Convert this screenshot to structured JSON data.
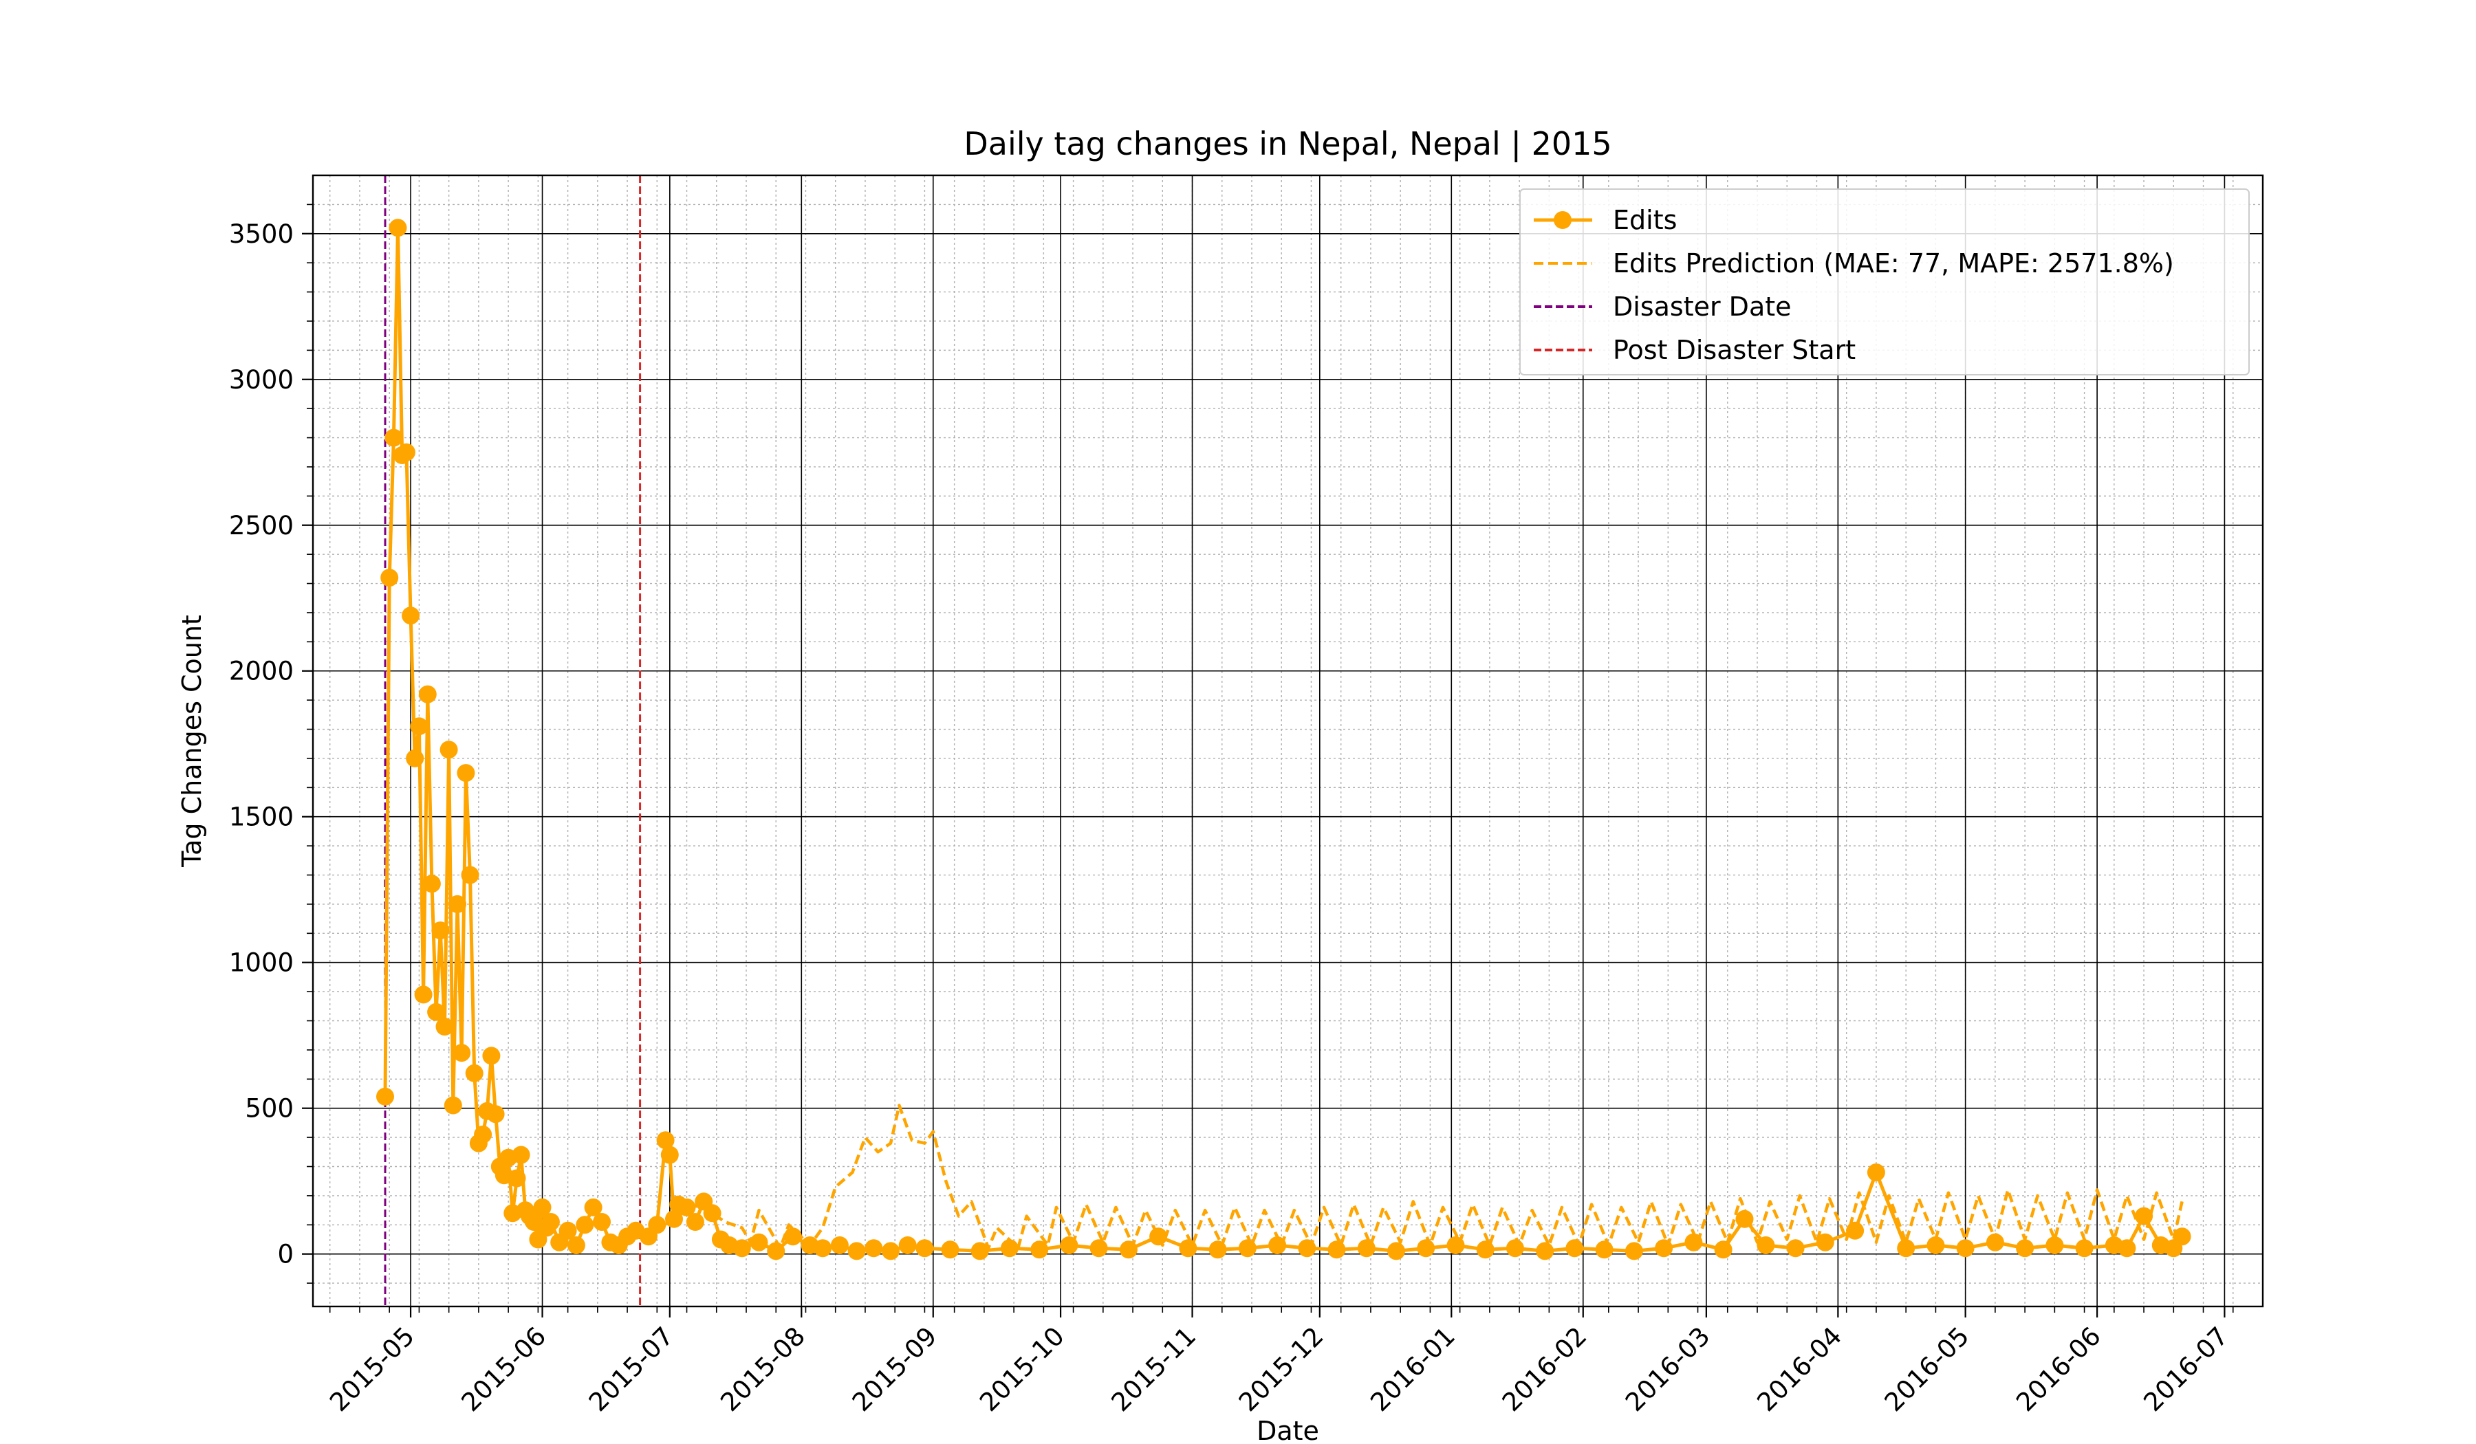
{
  "chart_data": {
    "type": "line",
    "title": "Daily tag changes in Nepal, Nepal | 2015",
    "xlabel": "Date",
    "ylabel": "Tag Changes Count",
    "x_scale": "date",
    "xlim": [
      "2015-04-08",
      "2016-07-10"
    ],
    "ylim": [
      -180,
      3700
    ],
    "x_ticks": [
      "2015-05",
      "2015-06",
      "2015-07",
      "2015-08",
      "2015-09",
      "2015-10",
      "2015-11",
      "2015-12",
      "2016-01",
      "2016-02",
      "2016-03",
      "2016-04",
      "2016-05",
      "2016-06",
      "2016-07"
    ],
    "y_ticks": [
      "0",
      "500",
      "1000",
      "1500",
      "2000",
      "2500",
      "3000",
      "3500"
    ],
    "grid": true,
    "legend_position": "upper right",
    "colors": {
      "edits": "#FFA500",
      "prediction": "#FFA500",
      "disaster": "#800080",
      "post": "#D62728",
      "grid": "#000000"
    },
    "vlines": [
      {
        "name": "Disaster Date",
        "date": "2015-04-25"
      },
      {
        "name": "Post Disaster Start",
        "date": "2015-06-24"
      }
    ],
    "series": [
      {
        "name": "Edits",
        "style": "solid-markers",
        "x": [
          "2015-04-25",
          "2015-04-26",
          "2015-04-27",
          "2015-04-28",
          "2015-04-29",
          "2015-04-30",
          "2015-05-01",
          "2015-05-02",
          "2015-05-03",
          "2015-05-04",
          "2015-05-05",
          "2015-05-06",
          "2015-05-07",
          "2015-05-08",
          "2015-05-09",
          "2015-05-10",
          "2015-05-11",
          "2015-05-12",
          "2015-05-13",
          "2015-05-14",
          "2015-05-15",
          "2015-05-16",
          "2015-05-17",
          "2015-05-18",
          "2015-05-19",
          "2015-05-20",
          "2015-05-21",
          "2015-05-22",
          "2015-05-23",
          "2015-05-24",
          "2015-05-25",
          "2015-05-26",
          "2015-05-27",
          "2015-05-28",
          "2015-05-29",
          "2015-05-30",
          "2015-05-31",
          "2015-06-01",
          "2015-06-02",
          "2015-06-03",
          "2015-06-05",
          "2015-06-07",
          "2015-06-09",
          "2015-06-11",
          "2015-06-13",
          "2015-06-15",
          "2015-06-17",
          "2015-06-19",
          "2015-06-21",
          "2015-06-23",
          "2015-06-26",
          "2015-06-28",
          "2015-06-30",
          "2015-07-01",
          "2015-07-02",
          "2015-07-03",
          "2015-07-05",
          "2015-07-07",
          "2015-07-09",
          "2015-07-11",
          "2015-07-13",
          "2015-07-15",
          "2015-07-18",
          "2015-07-22",
          "2015-07-26",
          "2015-07-30",
          "2015-08-03",
          "2015-08-06",
          "2015-08-10",
          "2015-08-14",
          "2015-08-18",
          "2015-08-22",
          "2015-08-26",
          "2015-08-30",
          "2015-09-05",
          "2015-09-12",
          "2015-09-19",
          "2015-09-26",
          "2015-10-03",
          "2015-10-10",
          "2015-10-17",
          "2015-10-24",
          "2015-10-31",
          "2015-11-07",
          "2015-11-14",
          "2015-11-21",
          "2015-11-28",
          "2015-12-05",
          "2015-12-12",
          "2015-12-19",
          "2015-12-26",
          "2016-01-02",
          "2016-01-09",
          "2016-01-16",
          "2016-01-23",
          "2016-01-30",
          "2016-02-06",
          "2016-02-13",
          "2016-02-20",
          "2016-02-27",
          "2016-03-05",
          "2016-03-10",
          "2016-03-15",
          "2016-03-22",
          "2016-03-29",
          "2016-04-05",
          "2016-04-10",
          "2016-04-17",
          "2016-04-24",
          "2016-05-01",
          "2016-05-08",
          "2016-05-15",
          "2016-05-22",
          "2016-05-29",
          "2016-06-05",
          "2016-06-08",
          "2016-06-12",
          "2016-06-16",
          "2016-06-19",
          "2016-06-21"
        ],
        "values": [
          540,
          2320,
          2800,
          3520,
          2740,
          2750,
          2190,
          1700,
          1810,
          890,
          1920,
          1270,
          830,
          1110,
          780,
          1730,
          510,
          1200,
          690,
          1650,
          1300,
          620,
          380,
          410,
          490,
          680,
          480,
          300,
          270,
          330,
          140,
          260,
          340,
          150,
          130,
          110,
          50,
          160,
          90,
          110,
          40,
          80,
          30,
          100,
          160,
          110,
          40,
          30,
          60,
          80,
          60,
          100,
          390,
          340,
          120,
          170,
          160,
          110,
          180,
          140,
          50,
          30,
          20,
          40,
          10,
          60,
          30,
          20,
          30,
          10,
          20,
          10,
          30,
          20,
          15,
          10,
          20,
          15,
          30,
          20,
          15,
          60,
          20,
          15,
          20,
          30,
          20,
          15,
          20,
          10,
          20,
          30,
          15,
          20,
          10,
          20,
          15,
          10,
          20,
          40,
          15,
          120,
          30,
          20,
          40,
          80,
          280,
          20,
          30,
          20,
          40,
          20,
          30,
          20,
          30,
          20,
          130,
          30,
          20,
          60
        ]
      },
      {
        "name": "Edits Prediction (MAE: 77, MAPE: 2571.8%)",
        "style": "dashed",
        "x": [
          "2015-06-24",
          "2015-06-28",
          "2015-07-02",
          "2015-07-06",
          "2015-07-10",
          "2015-07-14",
          "2015-07-18",
          "2015-07-20",
          "2015-07-22",
          "2015-07-27",
          "2015-07-29",
          "2015-08-03",
          "2015-08-06",
          "2015-08-09",
          "2015-08-13",
          "2015-08-16",
          "2015-08-19",
          "2015-08-22",
          "2015-08-24",
          "2015-08-27",
          "2015-08-30",
          "2015-09-01",
          "2015-09-04",
          "2015-09-07",
          "2015-09-10",
          "2015-09-14",
          "2015-09-16",
          "2015-09-21",
          "2015-09-23",
          "2015-09-28",
          "2015-09-30",
          "2015-10-04",
          "2015-10-07",
          "2015-10-11",
          "2015-10-14",
          "2015-10-18",
          "2015-10-21",
          "2015-10-25",
          "2015-10-28",
          "2015-11-01",
          "2015-11-04",
          "2015-11-08",
          "2015-11-11",
          "2015-11-15",
          "2015-11-18",
          "2015-11-22",
          "2015-11-25",
          "2015-11-29",
          "2015-12-02",
          "2015-12-06",
          "2015-12-09",
          "2015-12-13",
          "2015-12-16",
          "2015-12-20",
          "2015-12-23",
          "2015-12-27",
          "2015-12-30",
          "2016-01-03",
          "2016-01-06",
          "2016-01-10",
          "2016-01-13",
          "2016-01-17",
          "2016-01-20",
          "2016-01-24",
          "2016-01-27",
          "2016-01-31",
          "2016-02-03",
          "2016-02-07",
          "2016-02-10",
          "2016-02-14",
          "2016-02-17",
          "2016-02-21",
          "2016-02-24",
          "2016-02-28",
          "2016-03-02",
          "2016-03-06",
          "2016-03-09",
          "2016-03-13",
          "2016-03-16",
          "2016-03-20",
          "2016-03-23",
          "2016-03-27",
          "2016-03-30",
          "2016-04-03",
          "2016-04-06",
          "2016-04-10",
          "2016-04-13",
          "2016-04-17",
          "2016-04-20",
          "2016-04-24",
          "2016-04-27",
          "2016-05-01",
          "2016-05-04",
          "2016-05-08",
          "2016-05-11",
          "2016-05-15",
          "2016-05-18",
          "2016-05-22",
          "2016-05-25",
          "2016-05-29",
          "2016-06-01",
          "2016-06-05",
          "2016-06-08",
          "2016-06-12",
          "2016-06-15",
          "2016-06-19",
          "2016-06-21"
        ],
        "values": [
          60,
          80,
          120,
          170,
          150,
          110,
          90,
          40,
          150,
          20,
          100,
          30,
          90,
          230,
          280,
          400,
          350,
          380,
          510,
          390,
          380,
          420,
          250,
          130,
          180,
          20,
          90,
          20,
          130,
          30,
          160,
          40,
          170,
          40,
          160,
          30,
          150,
          30,
          150,
          30,
          150,
          30,
          160,
          30,
          150,
          30,
          150,
          30,
          160,
          30,
          170,
          30,
          160,
          40,
          180,
          30,
          160,
          40,
          170,
          30,
          160,
          30,
          150,
          30,
          160,
          30,
          170,
          30,
          160,
          40,
          180,
          30,
          170,
          40,
          180,
          40,
          190,
          40,
          180,
          50,
          200,
          40,
          190,
          50,
          210,
          40,
          200,
          40,
          190,
          50,
          210,
          50,
          200,
          50,
          220,
          50,
          200,
          50,
          210,
          50,
          220,
          50,
          200,
          50,
          210,
          50,
          180
        ]
      }
    ]
  }
}
